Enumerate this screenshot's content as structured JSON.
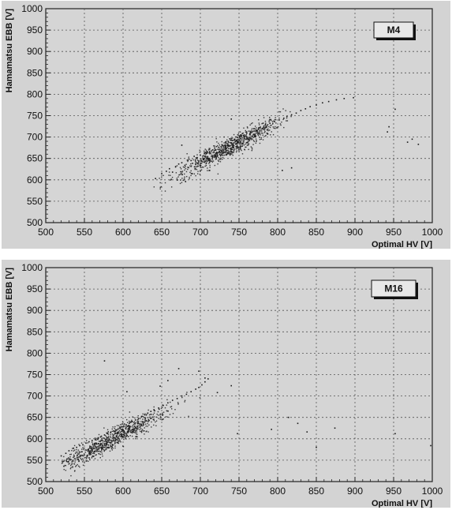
{
  "chart_data": [
    {
      "type": "scatter",
      "title": "",
      "xlabel": "Optimal HV [V]",
      "ylabel": "Hamamatsu EBB [V]",
      "xlim": [
        500,
        1000
      ],
      "ylim": [
        500,
        1000
      ],
      "xticks": [
        500,
        550,
        600,
        650,
        700,
        750,
        800,
        850,
        900,
        950,
        1000
      ],
      "yticks": [
        500,
        550,
        600,
        650,
        700,
        750,
        800,
        850,
        900,
        950,
        1000
      ],
      "grid": true,
      "legend": {
        "label": "M4",
        "placement": "top-right"
      },
      "trend": {
        "slope": 0.93,
        "intercept": -10,
        "x_range": [
          655,
          800
        ],
        "x_center": 735,
        "spread": 12
      },
      "series": [
        {
          "points": [
            [
              642,
              603
            ],
            [
              650,
              615
            ],
            [
              656,
              620
            ],
            [
              660,
              626
            ],
            [
              664,
              618
            ],
            [
              668,
              631
            ],
            [
              672,
              637
            ],
            [
              676,
              640
            ],
            [
              680,
              634
            ],
            [
              684,
              646
            ],
            [
              688,
              645
            ],
            [
              692,
              655
            ],
            [
              696,
              652
            ],
            [
              700,
              658
            ],
            [
              704,
              650
            ],
            [
              708,
              662
            ],
            [
              712,
              666
            ],
            [
              716,
              670
            ],
            [
              720,
              662
            ],
            [
              724,
              676
            ],
            [
              728,
              682
            ],
            [
              732,
              678
            ],
            [
              736,
              690
            ],
            [
              740,
              686
            ],
            [
              744,
              693
            ],
            [
              748,
              699
            ],
            [
              752,
              696
            ],
            [
              756,
              704
            ],
            [
              760,
              709
            ],
            [
              764,
              707
            ],
            [
              768,
              713
            ],
            [
              772,
              716
            ],
            [
              776,
              722
            ],
            [
              780,
              720
            ],
            [
              784,
              728
            ],
            [
              790,
              732
            ],
            [
              796,
              736
            ],
            [
              802,
              740
            ],
            [
              808,
              744
            ],
            [
              812,
              748
            ],
            [
              818,
              752
            ],
            [
              824,
              756
            ],
            [
              830,
              762
            ],
            [
              836,
              766
            ],
            [
              842,
              771
            ],
            [
              850,
              775
            ],
            [
              858,
              780
            ],
            [
              866,
              783
            ],
            [
              876,
              787
            ],
            [
              886,
              790
            ],
            [
              898,
              792
            ],
            [
              676,
              681
            ],
            [
              740,
              742
            ],
            [
              712,
              622
            ],
            [
              806,
              622
            ],
            [
              818,
              628
            ],
            [
              942,
              712
            ],
            [
              944,
              724
            ],
            [
              968,
              688
            ],
            [
              974,
              695
            ],
            [
              982,
              683
            ],
            [
              952,
              765
            ]
          ]
        }
      ]
    },
    {
      "type": "scatter",
      "title": "",
      "xlabel": "Optimal HV [V]",
      "ylabel": "Hamamatsu EBB [V]",
      "xlim": [
        500,
        1000
      ],
      "ylim": [
        500,
        1000
      ],
      "xticks": [
        500,
        550,
        600,
        650,
        700,
        750,
        800,
        850,
        900,
        950,
        1000
      ],
      "yticks": [
        500,
        550,
        600,
        650,
        700,
        750,
        800,
        850,
        900,
        950,
        1000
      ],
      "grid": true,
      "legend": {
        "label": "M16",
        "placement": "top-right"
      },
      "trend": {
        "slope": 0.95,
        "intercept": 42,
        "x_range": [
          535,
          690
        ],
        "x_center": 585,
        "spread": 12
      },
      "series": [
        {
          "points": [
            [
              520,
              560
            ],
            [
              526,
              566
            ],
            [
              530,
              572
            ],
            [
              536,
              578
            ],
            [
              540,
              580
            ],
            [
              544,
              584
            ],
            [
              548,
              586
            ],
            [
              552,
              590
            ],
            [
              556,
              593
            ],
            [
              560,
              596
            ],
            [
              564,
              598
            ],
            [
              568,
              602
            ],
            [
              572,
              606
            ],
            [
              576,
              609
            ],
            [
              580,
              612
            ],
            [
              584,
              614
            ],
            [
              588,
              618
            ],
            [
              592,
              621
            ],
            [
              596,
              625
            ],
            [
              600,
              628
            ],
            [
              604,
              632
            ],
            [
              608,
              636
            ],
            [
              612,
              640
            ],
            [
              616,
              644
            ],
            [
              620,
              648
            ],
            [
              624,
              652
            ],
            [
              628,
              656
            ],
            [
              632,
              660
            ],
            [
              636,
              664
            ],
            [
              640,
              668
            ],
            [
              646,
              672
            ],
            [
              652,
              678
            ],
            [
              658,
              684
            ],
            [
              664,
              690
            ],
            [
              670,
              694
            ],
            [
              676,
              700
            ],
            [
              682,
              704
            ],
            [
              688,
              710
            ],
            [
              694,
              716
            ],
            [
              698,
              720
            ],
            [
              702,
              726
            ],
            [
              706,
              733
            ],
            [
              710,
              740
            ],
            [
              576,
              782
            ],
            [
              605,
              710
            ],
            [
              648,
              723
            ],
            [
              658,
              736
            ],
            [
              672,
              764
            ],
            [
              698,
              758
            ],
            [
              706,
              742
            ],
            [
              722,
              708
            ],
            [
              740,
              724
            ],
            [
              748,
              612
            ],
            [
              792,
              622
            ],
            [
              814,
              650
            ],
            [
              826,
              636
            ],
            [
              838,
              616
            ],
            [
              850,
              580
            ],
            [
              874,
              625
            ],
            [
              952,
              612
            ],
            [
              998,
              584
            ]
          ]
        }
      ]
    }
  ]
}
